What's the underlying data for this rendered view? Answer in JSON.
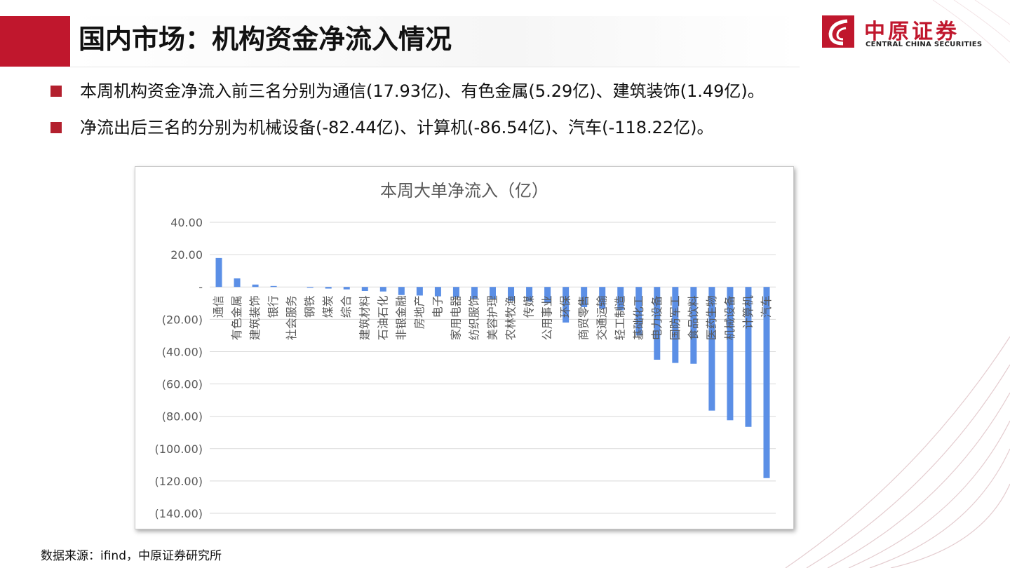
{
  "header": {
    "title": "国内市场：机构资金净流入情况"
  },
  "logo": {
    "cn": "中原证券",
    "en": "CENTRAL CHINA SECURITIES"
  },
  "bullets": [
    "本周机构资金净流入前三名分别为通信(17.93亿)、有色金属(5.29亿)、建筑装饰(1.49亿)。",
    "净流出后三名的分别为机械设备(-82.44亿)、计算机(-86.54亿)、汽车(-118.22亿)。"
  ],
  "source": "数据来源：ifind，中原证券研究所",
  "colors": {
    "brand": "#c0172d",
    "bar": "#5b8fe6"
  },
  "chart_data": {
    "type": "bar",
    "title": "本周大单净流入（亿）",
    "xlabel": "",
    "ylabel": "",
    "ylim": [
      -140,
      40
    ],
    "yticks": [
      40,
      20,
      0,
      -20,
      -40,
      -60,
      -80,
      -100,
      -120,
      -140
    ],
    "ytick_labels": [
      "40.00",
      "20.00",
      "-",
      "(20.00)",
      "(40.00)",
      "(60.00)",
      "(80.00)",
      "(100.00)",
      "(120.00)",
      "(140.00)"
    ],
    "grid": true,
    "legend": "none",
    "categories": [
      "通信",
      "有色金属",
      "建筑装饰",
      "银行",
      "社会服务",
      "钢铁",
      "煤炭",
      "综合",
      "建筑材料",
      "石油石化",
      "非银金融",
      "房地产",
      "电子",
      "家用电器",
      "纺织服饰",
      "美容护理",
      "农林牧渔",
      "传媒",
      "公用事业",
      "环保",
      "商贸零售",
      "交通运输",
      "轻工制造",
      "基础化工",
      "电力设备",
      "国防军工",
      "食品饮料",
      "医药生物",
      "机械设备",
      "计算机",
      "汽车"
    ],
    "values": [
      17.93,
      5.29,
      1.49,
      0.6,
      0,
      -0.5,
      -1.0,
      -1.5,
      -2.5,
      -2.8,
      -5.0,
      -5.3,
      -5.8,
      -6.5,
      -7.2,
      -7.8,
      -8.5,
      -9.0,
      -10.0,
      -22.0,
      -12.5,
      -13.5,
      -14.5,
      -30.0,
      -45.0,
      -47.0,
      -47.5,
      -76.5,
      -82.44,
      -86.54,
      -118.22
    ]
  }
}
